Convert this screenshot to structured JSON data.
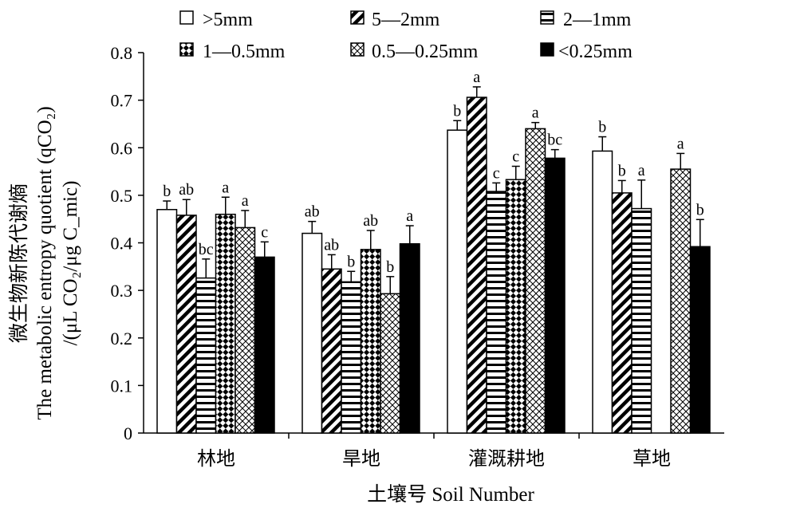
{
  "chart_data": {
    "type": "bar",
    "categories": [
      "林地",
      "旱地",
      "灌溉耕地",
      "草地"
    ],
    "xlabel": "土壤号 Soil Number",
    "ylabel_cn": "微生物新陈代谢熵",
    "ylabel_en_line1": "The metabolic entropy quotient (qCO₂)",
    "ylabel_en_line2": "/(μL CO₂/μg C_mic)",
    "ylim": [
      0,
      0.8
    ],
    "yticks": [
      "0",
      "0.1",
      "0.2",
      "0.3",
      "0.4",
      "0.5",
      "0.6",
      "0.7",
      "0.8"
    ],
    "legend_placement": "top",
    "series": [
      {
        "name": ">5mm",
        "pattern": "open",
        "values": [
          0.47,
          0.42,
          0.637,
          0.593
        ],
        "errors": [
          0.018,
          0.025,
          0.02,
          0.03
        ],
        "sig": [
          "b",
          "ab",
          "b",
          "b"
        ]
      },
      {
        "name": "5—2mm",
        "pattern": "diag",
        "values": [
          0.458,
          0.345,
          0.706,
          0.505
        ],
        "errors": [
          0.033,
          0.03,
          0.022,
          0.026
        ],
        "sig": [
          "ab",
          "ab",
          "a",
          "b"
        ]
      },
      {
        "name": "2—1mm",
        "pattern": "hlines",
        "values": [
          0.326,
          0.318,
          0.508,
          0.472
        ],
        "errors": [
          0.04,
          0.022,
          0.018,
          0.06
        ],
        "sig": [
          "bc",
          "b",
          "c",
          "a"
        ]
      },
      {
        "name": "1—0.5mm",
        "pattern": "checker",
        "values": [
          0.46,
          0.386,
          0.533,
          null
        ],
        "errors": [
          0.036,
          0.04,
          0.028,
          null
        ],
        "sig": [
          "a",
          "ab",
          "c",
          ""
        ]
      },
      {
        "name": "0.5—0.25mm",
        "pattern": "diamond",
        "values": [
          0.432,
          0.293,
          0.64,
          0.555
        ],
        "errors": [
          0.036,
          0.036,
          0.013,
          0.033
        ],
        "sig": [
          "a",
          "b",
          "a",
          "a"
        ]
      },
      {
        "name": "<0.25mm",
        "pattern": "solid",
        "values": [
          0.37,
          0.398,
          0.578,
          0.392
        ],
        "errors": [
          0.032,
          0.038,
          0.018,
          0.057
        ],
        "sig": [
          "c",
          "a",
          "bc",
          "b"
        ]
      }
    ],
    "grid": false
  }
}
